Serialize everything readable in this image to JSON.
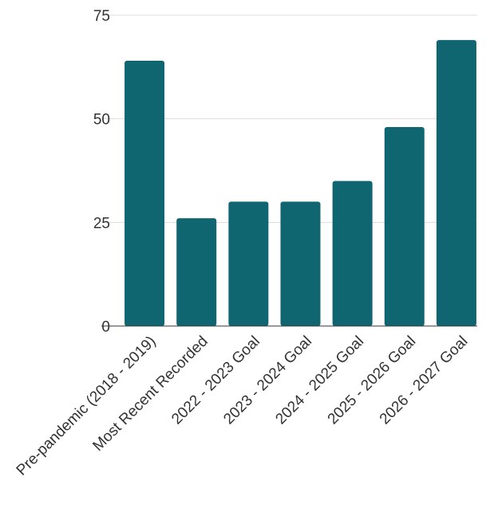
{
  "chart_data": {
    "type": "bar",
    "categories": [
      "Pre-pandemic (2018 - 2019)",
      "Most Recent Recorded",
      "2022 - 2023 Goal",
      "2023 - 2024 Goal",
      "2024 - 2025 Goal",
      "2025 - 2026 Goal",
      "2026 - 2027 Goal"
    ],
    "values": [
      64,
      26,
      30,
      30,
      35,
      48,
      69
    ],
    "ylim": [
      0,
      75
    ],
    "yticks": [
      0,
      25,
      50,
      75
    ],
    "grid": true,
    "bar_color": "#0f6670"
  }
}
